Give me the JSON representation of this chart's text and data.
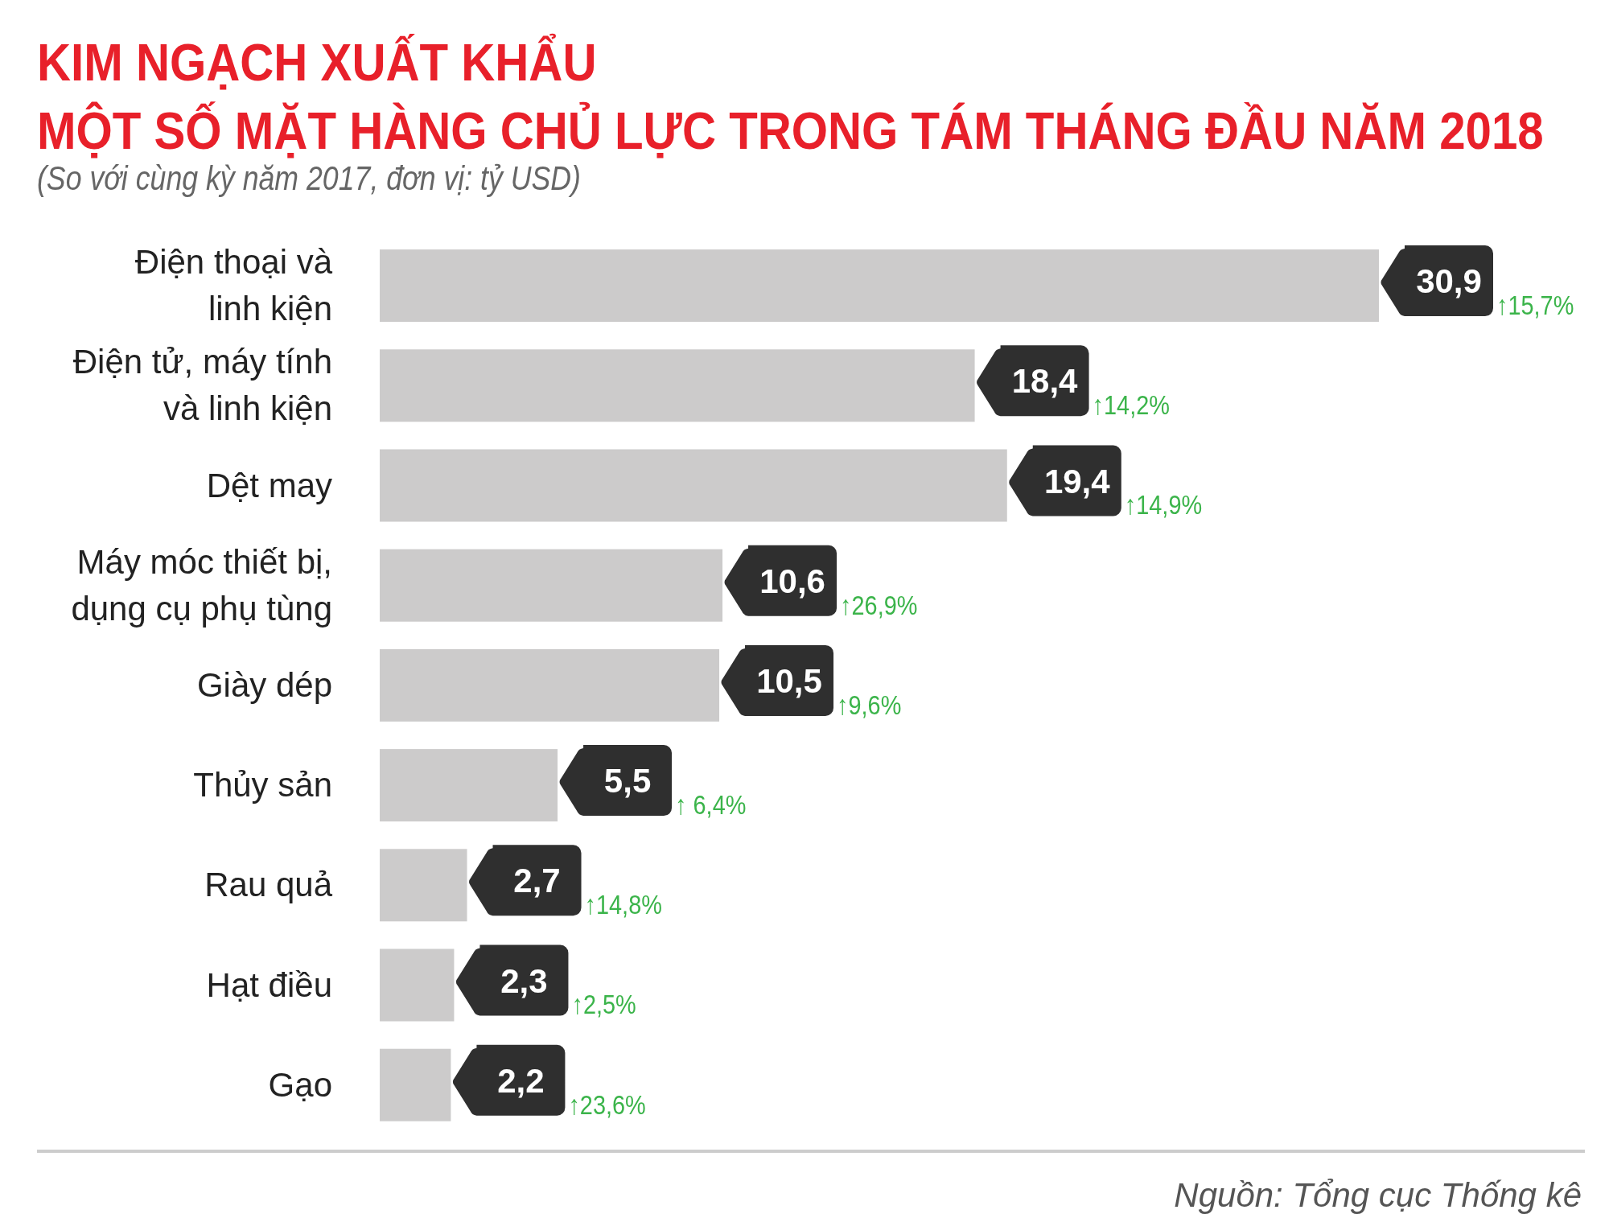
{
  "chart_data": {
    "type": "bar",
    "orientation": "horizontal",
    "title": "KIM NGẠCH XUẤT KHẨU\nMỘT SỐ MẶT HÀNG CHỦ LỰC TRONG TÁM THÁNG ĐẦU NĂM 2018",
    "subtitle": "(So với cùng kỳ năm 2017, đơn vị: tỷ USD)",
    "categories": [
      "Điện thoại và linh kiện",
      "Điện tử, máy tính và linh kiện",
      "Dệt may",
      "Máy móc thiết bị, dụng cụ phụ tùng",
      "Giày dép",
      "Thủy sản",
      "Rau quả",
      "Hạt điều",
      "Gạo"
    ],
    "values": [
      30.9,
      18.4,
      19.4,
      10.6,
      10.5,
      5.5,
      2.7,
      2.3,
      2.2
    ],
    "value_labels": [
      "30,9",
      "18,4",
      "19,4",
      "10,6",
      "10,5",
      "5,5",
      "2,7",
      "2,3",
      "2,2"
    ],
    "color": "#cccbcb",
    "annotations": [
      "↑15,7%",
      "↑14,2%",
      "↑14,9%",
      "↑26,9%",
      "↑9,6%",
      "↑ 6,4%",
      "↑14,8%",
      "↑2,5%",
      "↑23,6%",
      "Nguồn: Tổng cục Thống kê"
    ]
  }
}
